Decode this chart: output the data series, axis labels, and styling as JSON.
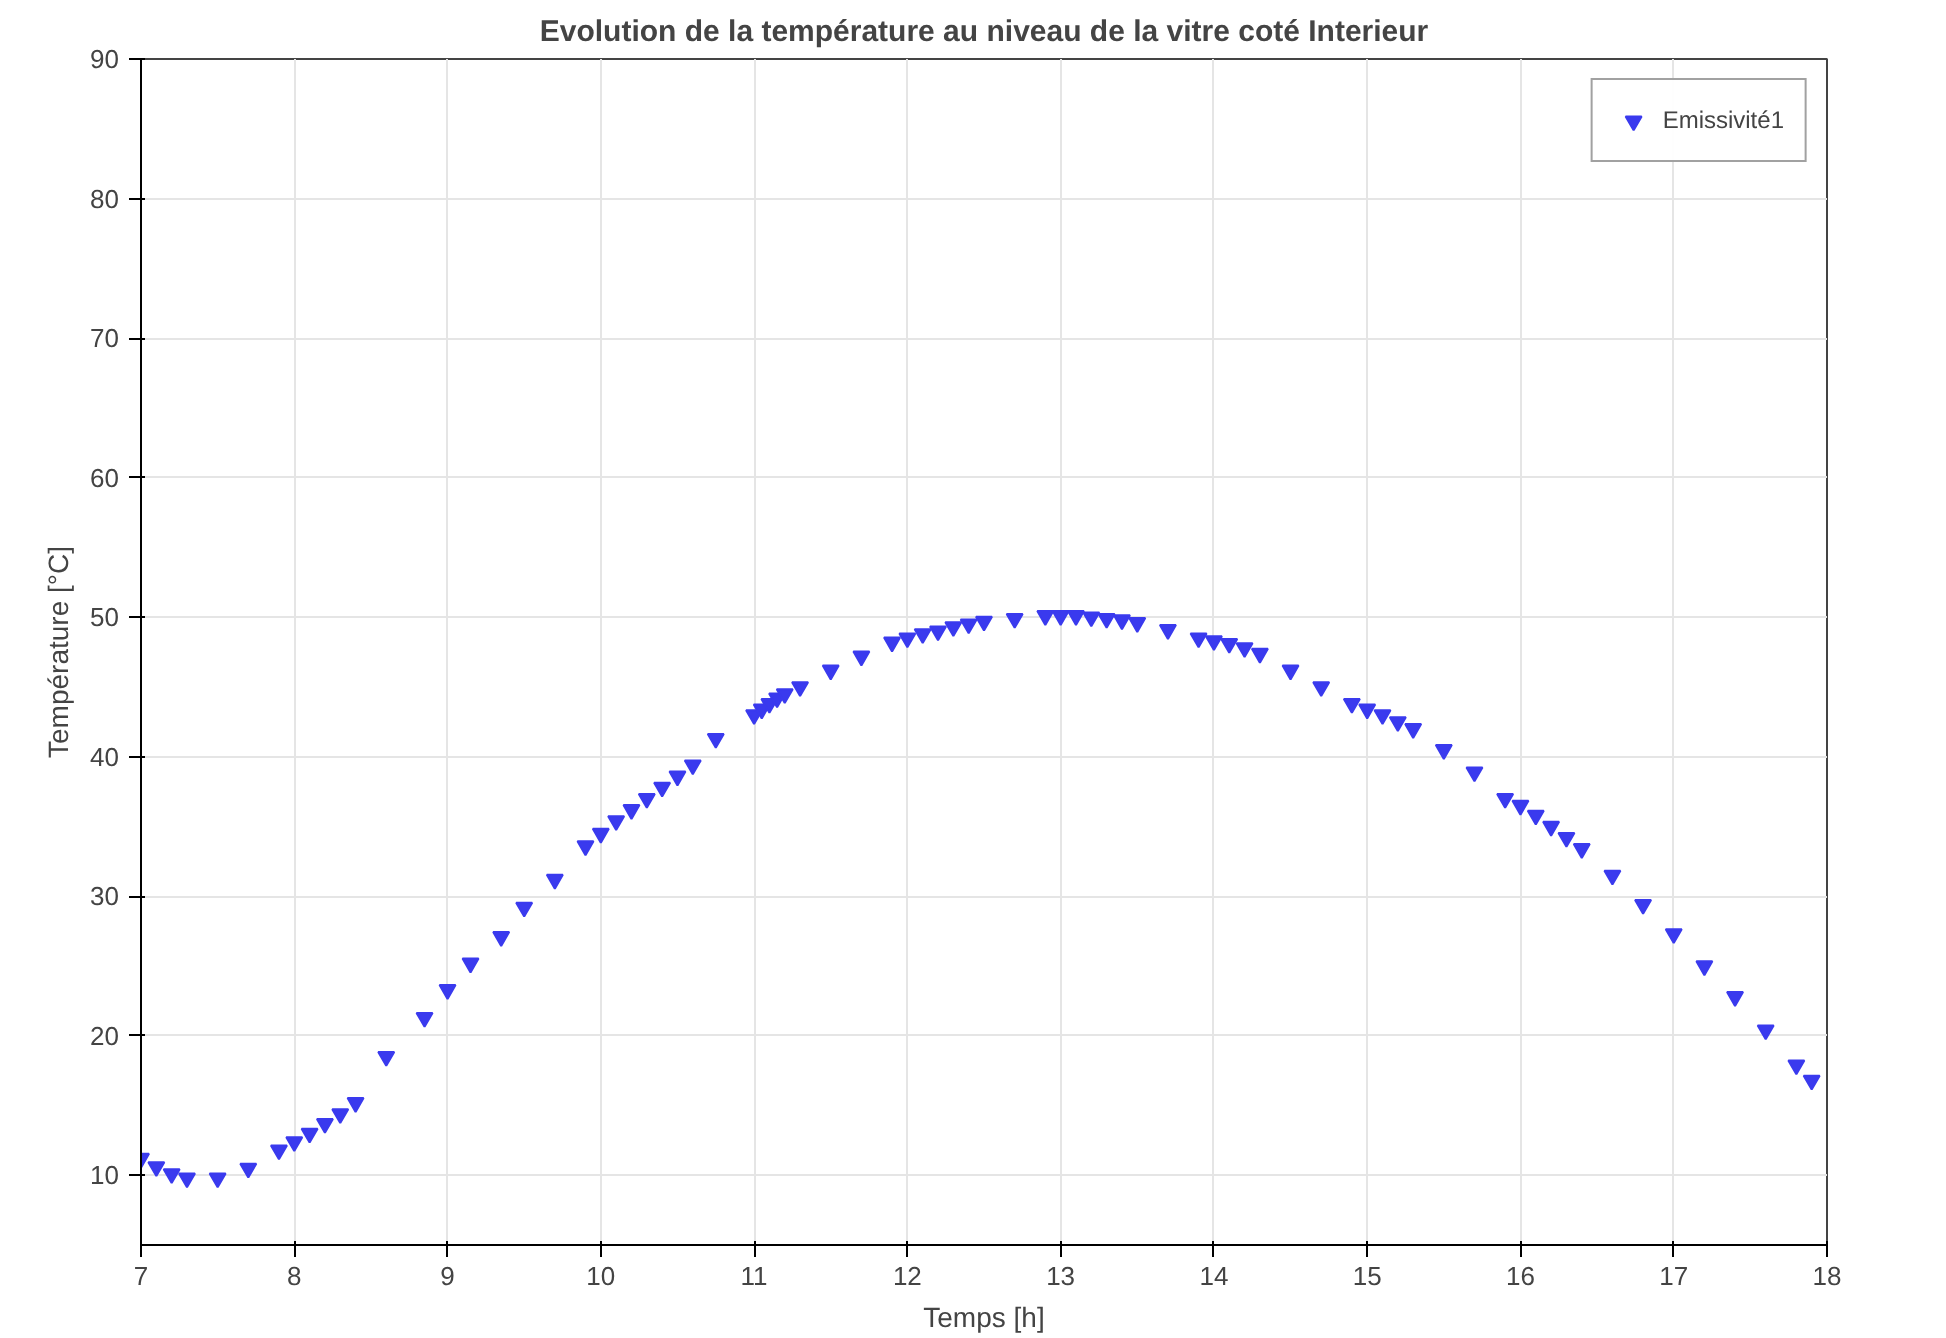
{
  "chart_data": {
    "type": "scatter",
    "title": "Evolution de la température au niveau de la vitre coté Interieur",
    "xlabel": "Temps [h]",
    "ylabel": "Température [°C]",
    "xlim": [
      7,
      18
    ],
    "ylim": [
      5,
      90
    ],
    "xticks": [
      7,
      8,
      9,
      10,
      11,
      12,
      13,
      14,
      15,
      16,
      17,
      18
    ],
    "yticks": [
      10,
      20,
      30,
      40,
      50,
      60,
      70,
      80,
      90
    ],
    "grid": true,
    "legend": "top right",
    "marker": "triangle",
    "series": [
      {
        "name": "Emissivité1",
        "color": "#3a3aee",
        "x": [
          7.0,
          7.1,
          7.2,
          7.3,
          7.5,
          7.7,
          7.9,
          8.0,
          8.1,
          8.2,
          8.3,
          8.4,
          8.6,
          8.85,
          9.0,
          9.15,
          9.35,
          9.5,
          9.7,
          9.9,
          10.0,
          10.1,
          10.2,
          10.3,
          10.4,
          10.5,
          10.6,
          10.75,
          11.0,
          11.05,
          11.1,
          11.15,
          11.2,
          11.3,
          11.5,
          11.7,
          11.9,
          12.0,
          12.1,
          12.2,
          12.3,
          12.4,
          12.5,
          12.7,
          12.9,
          13.0,
          13.1,
          13.2,
          13.3,
          13.4,
          13.5,
          13.7,
          13.9,
          14.0,
          14.1,
          14.2,
          14.3,
          14.5,
          14.7,
          14.9,
          15.0,
          15.1,
          15.2,
          15.3,
          15.5,
          15.7,
          15.9,
          16.0,
          16.1,
          16.2,
          16.3,
          16.4,
          16.6,
          16.8,
          17.0,
          17.2,
          17.4,
          17.6,
          17.8,
          17.9
        ],
        "values": [
          11.2,
          10.6,
          10.1,
          9.8,
          9.8,
          10.5,
          11.8,
          12.4,
          13.0,
          13.7,
          14.4,
          15.2,
          18.5,
          21.3,
          23.3,
          25.2,
          27.1,
          29.2,
          31.2,
          33.6,
          34.5,
          35.4,
          36.2,
          37.0,
          37.8,
          38.6,
          39.4,
          41.3,
          43.0,
          43.4,
          43.8,
          44.2,
          44.5,
          45.0,
          46.2,
          47.2,
          48.2,
          48.5,
          48.8,
          49.0,
          49.3,
          49.5,
          49.7,
          49.9,
          50.1,
          50.1,
          50.1,
          50.0,
          49.9,
          49.8,
          49.6,
          49.1,
          48.5,
          48.3,
          48.1,
          47.8,
          47.4,
          46.2,
          45.0,
          43.8,
          43.4,
          43.0,
          42.5,
          42.0,
          40.5,
          38.9,
          37.0,
          36.5,
          35.8,
          35.0,
          34.2,
          33.4,
          31.5,
          29.4,
          27.3,
          25.0,
          22.8,
          20.4,
          17.9,
          16.8
        ]
      }
    ]
  }
}
